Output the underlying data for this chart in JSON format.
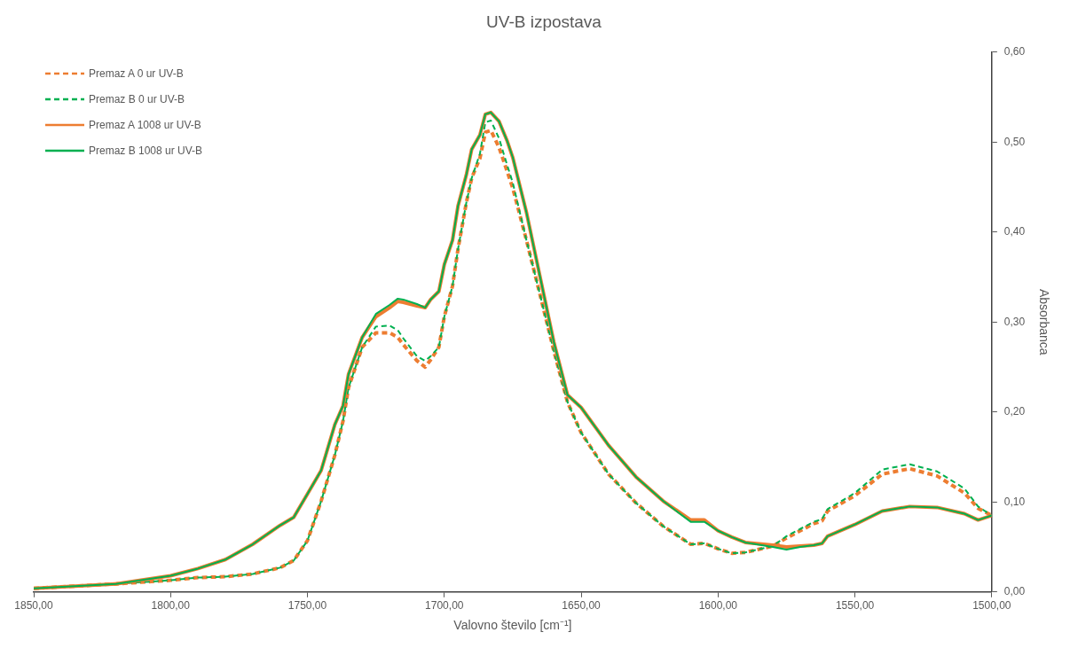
{
  "chart_data": {
    "type": "line",
    "title": "UV-B izpostava",
    "xlabel": "Valovno število [cm⁻¹]",
    "ylabel": "Absorbanca",
    "x": [
      1850,
      1820,
      1800,
      1790,
      1780,
      1770,
      1760,
      1755,
      1750,
      1745,
      1740,
      1737,
      1735,
      1730,
      1725,
      1720,
      1717,
      1715,
      1710,
      1707,
      1705,
      1702,
      1700,
      1697,
      1695,
      1692,
      1690,
      1687,
      1685,
      1683,
      1680,
      1677,
      1675,
      1670,
      1665,
      1660,
      1655,
      1650,
      1640,
      1630,
      1620,
      1610,
      1605,
      1600,
      1595,
      1590,
      1580,
      1575,
      1570,
      1565,
      1562,
      1560,
      1550,
      1540,
      1530,
      1520,
      1510,
      1505,
      1500
    ],
    "series": [
      {
        "name": "Premaz A 0 ur UV-B",
        "color": "#ed7d31",
        "line_style": "dashed",
        "values": [
          0.004,
          0.009,
          0.013,
          0.016,
          0.017,
          0.02,
          0.027,
          0.035,
          0.057,
          0.101,
          0.152,
          0.19,
          0.227,
          0.272,
          0.288,
          0.288,
          0.283,
          0.275,
          0.257,
          0.25,
          0.258,
          0.272,
          0.306,
          0.34,
          0.381,
          0.432,
          0.46,
          0.482,
          0.511,
          0.513,
          0.494,
          0.467,
          0.449,
          0.391,
          0.33,
          0.268,
          0.211,
          0.177,
          0.131,
          0.099,
          0.073,
          0.053,
          0.054,
          0.048,
          0.043,
          0.044,
          0.051,
          0.06,
          0.068,
          0.076,
          0.079,
          0.09,
          0.107,
          0.131,
          0.137,
          0.129,
          0.11,
          0.093,
          0.085
        ]
      },
      {
        "name": "Premaz B 0 ur UV-B",
        "color": "#00b050",
        "line_style": "dashed",
        "values": [
          0.004,
          0.009,
          0.013,
          0.016,
          0.017,
          0.02,
          0.027,
          0.035,
          0.057,
          0.101,
          0.152,
          0.19,
          0.227,
          0.272,
          0.295,
          0.296,
          0.291,
          0.282,
          0.262,
          0.257,
          0.262,
          0.272,
          0.306,
          0.34,
          0.381,
          0.432,
          0.46,
          0.487,
          0.522,
          0.524,
          0.504,
          0.474,
          0.455,
          0.391,
          0.33,
          0.268,
          0.211,
          0.177,
          0.131,
          0.099,
          0.073,
          0.053,
          0.054,
          0.048,
          0.043,
          0.044,
          0.051,
          0.062,
          0.07,
          0.078,
          0.081,
          0.092,
          0.11,
          0.136,
          0.142,
          0.134,
          0.115,
          0.095,
          0.085
        ]
      },
      {
        "name": "Premaz A 1008 ur UV-B",
        "color": "#ed7d31",
        "line_style": "solid",
        "values": [
          0.004,
          0.009,
          0.018,
          0.026,
          0.036,
          0.053,
          0.074,
          0.083,
          0.109,
          0.135,
          0.186,
          0.207,
          0.242,
          0.283,
          0.306,
          0.316,
          0.323,
          0.322,
          0.318,
          0.316,
          0.325,
          0.334,
          0.364,
          0.391,
          0.429,
          0.463,
          0.492,
          0.508,
          0.531,
          0.533,
          0.523,
          0.501,
          0.483,
          0.422,
          0.35,
          0.278,
          0.219,
          0.205,
          0.163,
          0.128,
          0.101,
          0.08,
          0.08,
          0.068,
          0.061,
          0.055,
          0.052,
          0.05,
          0.051,
          0.052,
          0.054,
          0.062,
          0.075,
          0.09,
          0.095,
          0.094,
          0.087,
          0.08,
          0.085
        ]
      },
      {
        "name": "Premaz B 1008 ur UV-B",
        "color": "#00b050",
        "line_style": "solid",
        "values": [
          0.004,
          0.009,
          0.018,
          0.026,
          0.036,
          0.053,
          0.074,
          0.083,
          0.109,
          0.135,
          0.186,
          0.207,
          0.242,
          0.283,
          0.309,
          0.319,
          0.326,
          0.325,
          0.32,
          0.316,
          0.325,
          0.334,
          0.364,
          0.391,
          0.429,
          0.463,
          0.492,
          0.508,
          0.531,
          0.533,
          0.523,
          0.501,
          0.483,
          0.422,
          0.35,
          0.278,
          0.219,
          0.205,
          0.163,
          0.128,
          0.101,
          0.078,
          0.078,
          0.068,
          0.061,
          0.055,
          0.05,
          0.047,
          0.05,
          0.052,
          0.054,
          0.062,
          0.075,
          0.09,
          0.095,
          0.094,
          0.087,
          0.08,
          0.085
        ]
      }
    ],
    "xlim": [
      1850,
      1500
    ],
    "xticks": [
      {
        "value": 1850,
        "label": "1850,00"
      },
      {
        "value": 1800,
        "label": "1800,00"
      },
      {
        "value": 1750,
        "label": "1750,00"
      },
      {
        "value": 1700,
        "label": "1700,00"
      },
      {
        "value": 1650,
        "label": "1650,00"
      },
      {
        "value": 1600,
        "label": "1600,00"
      },
      {
        "value": 1550,
        "label": "1550,00"
      },
      {
        "value": 1500,
        "label": "1500,00"
      }
    ],
    "ylim": [
      0,
      0.6
    ],
    "yticks": [
      {
        "value": 0,
        "label": "0,00"
      },
      {
        "value": 0.1,
        "label": "0,10"
      },
      {
        "value": 0.2,
        "label": "0,20"
      },
      {
        "value": 0.3,
        "label": "0,30"
      },
      {
        "value": 0.4,
        "label": "0,40"
      },
      {
        "value": 0.5,
        "label": "0,50"
      },
      {
        "value": 0.6,
        "label": "0,60"
      }
    ],
    "grid": false,
    "legend": "top left",
    "marker": "none"
  }
}
